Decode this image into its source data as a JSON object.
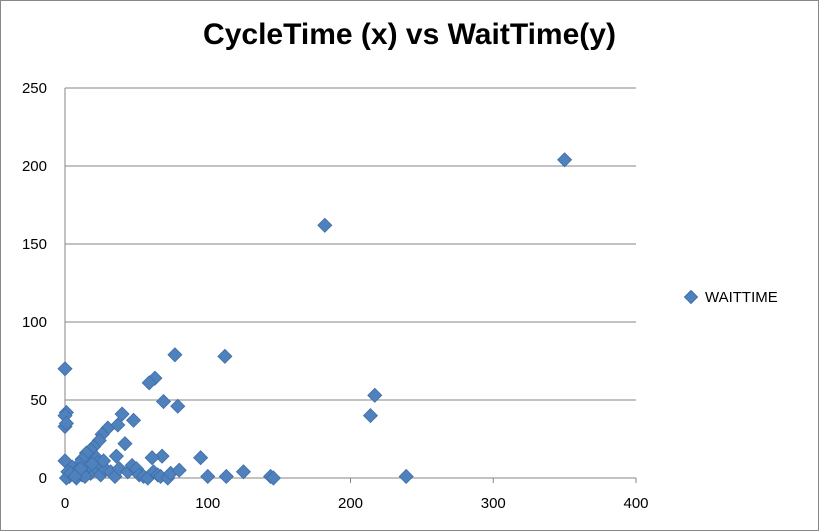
{
  "chart_data": {
    "type": "scatter",
    "title": "CycleTime (x) vs WaitTime(y)",
    "xlabel": "",
    "ylabel": "",
    "xlim": [
      0,
      400
    ],
    "ylim": [
      0,
      250
    ],
    "x_ticks": [
      0,
      100,
      200,
      300,
      400
    ],
    "y_ticks": [
      0,
      50,
      100,
      150,
      200,
      250
    ],
    "grid": "horizontal",
    "legend_position": "right",
    "marker": "diamond",
    "color": "#4f81bd",
    "series": [
      {
        "name": "WAITTIME",
        "points": [
          [
            350,
            204
          ],
          [
            182,
            162
          ],
          [
            77,
            79
          ],
          [
            112,
            78
          ],
          [
            0,
            70
          ],
          [
            63,
            64
          ],
          [
            59,
            61
          ],
          [
            217,
            53
          ],
          [
            69,
            49
          ],
          [
            79,
            46
          ],
          [
            214,
            40
          ],
          [
            1,
            42
          ],
          [
            0,
            40
          ],
          [
            40,
            41
          ],
          [
            48,
            37
          ],
          [
            0,
            33
          ],
          [
            1,
            35
          ],
          [
            30,
            32
          ],
          [
            37,
            34
          ],
          [
            26,
            28
          ],
          [
            24,
            24
          ],
          [
            42,
            22
          ],
          [
            20,
            20
          ],
          [
            18,
            18
          ],
          [
            15,
            16
          ],
          [
            12,
            12
          ],
          [
            0,
            11
          ],
          [
            95,
            13
          ],
          [
            68,
            14
          ],
          [
            61,
            13
          ],
          [
            36,
            14
          ],
          [
            22,
            13
          ],
          [
            10,
            9
          ],
          [
            5,
            7
          ],
          [
            2,
            4
          ],
          [
            3,
            1
          ],
          [
            8,
            0
          ],
          [
            12,
            2
          ],
          [
            15,
            5
          ],
          [
            18,
            3
          ],
          [
            21,
            7
          ],
          [
            25,
            2
          ],
          [
            28,
            6
          ],
          [
            32,
            4
          ],
          [
            35,
            1
          ],
          [
            38,
            6
          ],
          [
            44,
            4
          ],
          [
            47,
            8
          ],
          [
            50,
            6
          ],
          [
            52,
            2
          ],
          [
            55,
            1
          ],
          [
            58,
            0
          ],
          [
            62,
            4
          ],
          [
            65,
            2
          ],
          [
            67,
            1
          ],
          [
            72,
            0
          ],
          [
            74,
            3
          ],
          [
            80,
            5
          ],
          [
            100,
            1
          ],
          [
            113,
            1
          ],
          [
            125,
            4
          ],
          [
            144,
            1
          ],
          [
            146,
            0
          ],
          [
            239,
            1
          ],
          [
            1,
            0
          ],
          [
            6,
            2
          ],
          [
            9,
            5
          ],
          [
            14,
            1
          ],
          [
            17,
            8
          ],
          [
            23,
            10
          ],
          [
            27,
            11
          ],
          [
            19,
            9
          ],
          [
            11,
            6
          ],
          [
            4,
            3
          ],
          [
            7,
            1
          ]
        ]
      }
    ]
  }
}
